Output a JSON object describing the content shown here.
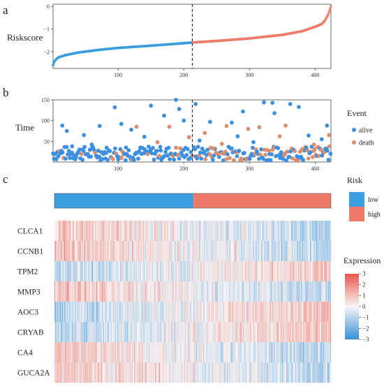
{
  "colors": {
    "low": "#3a9ee0",
    "high": "#f07a6a",
    "alive": "#3d8fe0",
    "death": "#d98e6f",
    "heat_low": "#3a8fd6",
    "heat_mid": "#f7f6f6",
    "heat_high": "#e8564a"
  },
  "chart_data": [
    {
      "id": "a",
      "type": "scatter",
      "panel_label": "a",
      "ylabel": "Riskscore",
      "n_samples": 424,
      "cutoff": 213,
      "xlim": [
        1,
        424
      ],
      "ylim": [
        -2.75,
        0.1
      ],
      "xticks": [
        100,
        200,
        300,
        400
      ],
      "yticks": [
        0,
        -1,
        -2
      ],
      "ytick_labels": [
        "0",
        "−1",
        "−2"
      ],
      "curve_points": [
        {
          "x": 1,
          "y": -2.6
        },
        {
          "x": 3,
          "y": -2.45
        },
        {
          "x": 6,
          "y": -2.33
        },
        {
          "x": 10,
          "y": -2.25
        },
        {
          "x": 20,
          "y": -2.16
        },
        {
          "x": 40,
          "y": -2.04
        },
        {
          "x": 70,
          "y": -1.93
        },
        {
          "x": 100,
          "y": -1.84
        },
        {
          "x": 150,
          "y": -1.74
        },
        {
          "x": 200,
          "y": -1.63
        },
        {
          "x": 213,
          "y": -1.6
        },
        {
          "x": 250,
          "y": -1.53
        },
        {
          "x": 300,
          "y": -1.42
        },
        {
          "x": 350,
          "y": -1.26
        },
        {
          "x": 380,
          "y": -1.1
        },
        {
          "x": 400,
          "y": -0.9
        },
        {
          "x": 410,
          "y": -0.78
        },
        {
          "x": 415,
          "y": -0.62
        },
        {
          "x": 420,
          "y": -0.35
        },
        {
          "x": 424,
          "y": 0.0
        }
      ],
      "groups": [
        "low",
        "high"
      ]
    },
    {
      "id": "b",
      "type": "scatter",
      "panel_label": "b",
      "ylabel": "Time",
      "xlim": [
        1,
        424
      ],
      "ylim": [
        0,
        150
      ],
      "xticks": [
        100,
        200,
        300,
        400
      ],
      "yticks": [
        50,
        100,
        150
      ],
      "cutoff": 213,
      "legend": {
        "title": "Event",
        "position": "right",
        "entries": [
          "alive",
          "death"
        ]
      },
      "points": [
        {
          "x": 15,
          "y": 88,
          "event": "alive"
        },
        {
          "x": 22,
          "y": 75,
          "event": "alive"
        },
        {
          "x": 48,
          "y": 65,
          "event": "alive"
        },
        {
          "x": 60,
          "y": 42,
          "event": "alive"
        },
        {
          "x": 72,
          "y": 87,
          "event": "alive"
        },
        {
          "x": 95,
          "y": 132,
          "event": "alive"
        },
        {
          "x": 105,
          "y": 92,
          "event": "alive"
        },
        {
          "x": 120,
          "y": 78,
          "event": "alive"
        },
        {
          "x": 128,
          "y": 85,
          "event": "death"
        },
        {
          "x": 140,
          "y": 61,
          "event": "alive"
        },
        {
          "x": 150,
          "y": 136,
          "event": "alive"
        },
        {
          "x": 160,
          "y": 48,
          "event": "death"
        },
        {
          "x": 170,
          "y": 112,
          "event": "alive"
        },
        {
          "x": 178,
          "y": 85,
          "event": "death"
        },
        {
          "x": 188,
          "y": 150,
          "event": "alive"
        },
        {
          "x": 193,
          "y": 128,
          "event": "alive"
        },
        {
          "x": 200,
          "y": 100,
          "event": "alive"
        },
        {
          "x": 208,
          "y": 60,
          "event": "death"
        },
        {
          "x": 218,
          "y": 140,
          "event": "alive"
        },
        {
          "x": 224,
          "y": 52,
          "event": "alive"
        },
        {
          "x": 232,
          "y": 70,
          "event": "death"
        },
        {
          "x": 240,
          "y": 97,
          "event": "alive"
        },
        {
          "x": 258,
          "y": 44,
          "event": "death"
        },
        {
          "x": 265,
          "y": 87,
          "event": "death"
        },
        {
          "x": 273,
          "y": 95,
          "event": "alive"
        },
        {
          "x": 282,
          "y": 62,
          "event": "alive"
        },
        {
          "x": 290,
          "y": 122,
          "event": "alive"
        },
        {
          "x": 298,
          "y": 80,
          "event": "death"
        },
        {
          "x": 306,
          "y": 48,
          "event": "alive"
        },
        {
          "x": 315,
          "y": 84,
          "event": "death"
        },
        {
          "x": 322,
          "y": 144,
          "event": "alive"
        },
        {
          "x": 335,
          "y": 143,
          "event": "alive"
        },
        {
          "x": 338,
          "y": 118,
          "event": "alive"
        },
        {
          "x": 346,
          "y": 62,
          "event": "death"
        },
        {
          "x": 355,
          "y": 88,
          "event": "death"
        },
        {
          "x": 362,
          "y": 140,
          "event": "alive"
        },
        {
          "x": 375,
          "y": 133,
          "event": "alive"
        },
        {
          "x": 390,
          "y": 64,
          "event": "alive"
        },
        {
          "x": 398,
          "y": 42,
          "event": "death"
        },
        {
          "x": 410,
          "y": 55,
          "event": "alive"
        },
        {
          "x": 418,
          "y": 88,
          "event": "alive"
        },
        {
          "x": 421,
          "y": 65,
          "event": "death"
        },
        {
          "x": 30,
          "y": 38,
          "event": "alive"
        },
        {
          "x": 45,
          "y": 30,
          "event": "alive"
        },
        {
          "x": 82,
          "y": 22,
          "event": "alive"
        },
        {
          "x": 112,
          "y": 35,
          "event": "alive"
        },
        {
          "x": 165,
          "y": 28,
          "event": "alive"
        },
        {
          "x": 245,
          "y": 33,
          "event": "death"
        },
        {
          "x": 330,
          "y": 27,
          "event": "death"
        },
        {
          "x": 380,
          "y": 31,
          "event": "death"
        }
      ],
      "dense_band": {
        "y_range": [
          0,
          40
        ],
        "count_per_group": 150
      }
    },
    {
      "id": "c",
      "type": "heatmap",
      "panel_label": "c",
      "genes": [
        "CLCA1",
        "CCNB1",
        "TPM2",
        "MMP3",
        "AOC3",
        "CRYAB",
        "CA4",
        "GUCA2A"
      ],
      "gene_trends": [
        1,
        1,
        -1,
        1,
        -1,
        -1,
        1,
        1
      ],
      "n_samples": 424,
      "cutoff": 213,
      "risk_legend": {
        "title": "Risk",
        "entries": [
          "low",
          "high"
        ]
      },
      "expression_legend": {
        "title": "Expression",
        "ticks": [
          "3",
          "2",
          "1",
          "0",
          "−1",
          "−2",
          "−3"
        ],
        "range": [
          -3,
          3
        ]
      }
    }
  ]
}
